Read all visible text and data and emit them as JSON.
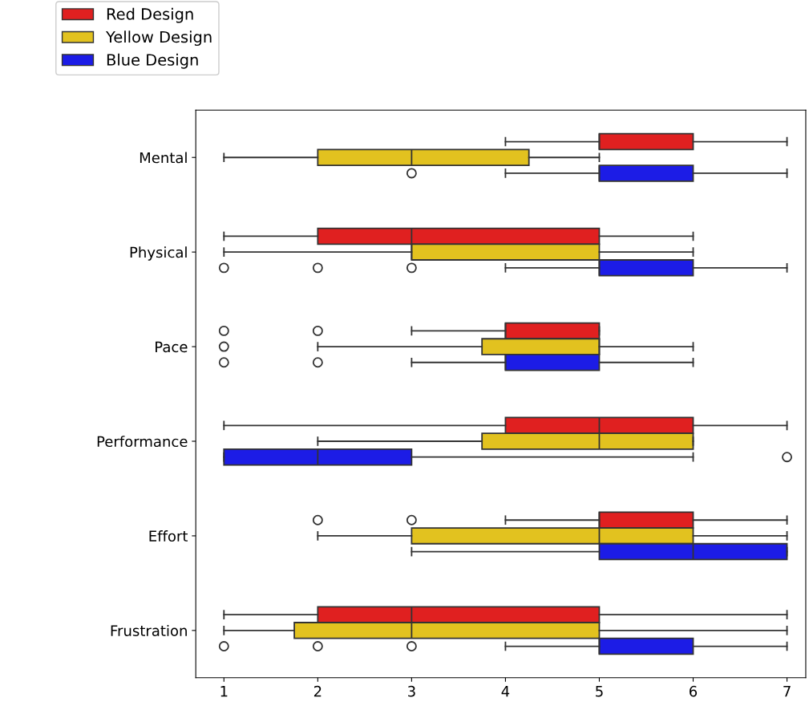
{
  "chart_data": {
    "type": "box",
    "orientation": "horizontal",
    "categories": [
      "Mental",
      "Physical",
      "Pace",
      "Performance",
      "Effort",
      "Frustration"
    ],
    "xlim": [
      0.7,
      7.2
    ],
    "xticks": [
      1,
      2,
      3,
      4,
      5,
      6,
      7
    ],
    "grid": false,
    "legend": "top left",
    "marker": "circle",
    "series": [
      {
        "name": "Red Design",
        "color": "#e02020",
        "boxes": [
          {
            "low": 4,
            "q1": 5,
            "median": 5,
            "q3": 6,
            "high": 7
          },
          {
            "low": 1,
            "q1": 2,
            "median": 3,
            "q3": 5,
            "high": 6
          },
          {
            "low": 3,
            "q1": 4,
            "median": 4,
            "q3": 5,
            "high": 5,
            "outliers": [
              1,
              2
            ]
          },
          {
            "low": 1,
            "q1": 4,
            "median": 5,
            "q3": 6,
            "high": 7
          },
          {
            "low": 4,
            "q1": 5,
            "median": 5,
            "q3": 6,
            "high": 7,
            "outliers": [
              2,
              3
            ]
          },
          {
            "low": 1,
            "q1": 2,
            "median": 3,
            "q3": 5,
            "high": 7
          }
        ]
      },
      {
        "name": "Yellow Design",
        "color": "#e2c21f",
        "boxes": [
          {
            "low": 1,
            "q1": 2,
            "median": 3,
            "q3": 4.25,
            "high": 5
          },
          {
            "low": 1,
            "q1": 3,
            "median": 3,
            "q3": 5,
            "high": 6
          },
          {
            "low": 2,
            "q1": 3.75,
            "median": 5,
            "q3": 5,
            "high": 6,
            "outliers": [
              1
            ]
          },
          {
            "low": 2,
            "q1": 3.75,
            "median": 5,
            "q3": 6,
            "high": 6
          },
          {
            "low": 2,
            "q1": 3,
            "median": 5,
            "q3": 6,
            "high": 7
          },
          {
            "low": 1,
            "q1": 1.75,
            "median": 3,
            "q3": 5,
            "high": 7
          }
        ]
      },
      {
        "name": "Blue Design",
        "color": "#1c1ce6",
        "boxes": [
          {
            "low": 4,
            "q1": 5,
            "median": 5,
            "q3": 6,
            "high": 7,
            "outliers": [
              3
            ]
          },
          {
            "low": 4,
            "q1": 5,
            "median": 5,
            "q3": 6,
            "high": 7,
            "outliers": [
              1,
              2,
              3
            ]
          },
          {
            "low": 3,
            "q1": 4,
            "median": 4,
            "q3": 5,
            "high": 6,
            "outliers": [
              1,
              2
            ]
          },
          {
            "low": 1,
            "q1": 1,
            "median": 2,
            "q3": 3,
            "high": 6,
            "outliers": [
              7
            ]
          },
          {
            "low": 3,
            "q1": 5,
            "median": 6,
            "q3": 7,
            "high": 7
          },
          {
            "low": 4,
            "q1": 5,
            "median": 5,
            "q3": 6,
            "high": 7,
            "outliers": [
              1,
              2,
              3
            ]
          }
        ]
      }
    ]
  }
}
